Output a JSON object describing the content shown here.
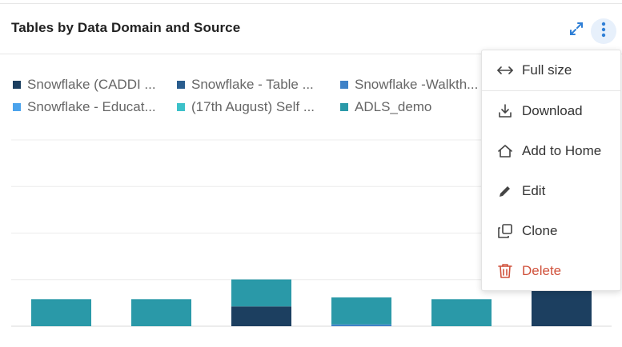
{
  "card": {
    "title": "Tables by Data Domain and Source"
  },
  "header_icons": {
    "expand": "expand-icon",
    "more": "more-vertical-icon"
  },
  "legend": [
    {
      "label": "Snowflake (CADDI ...",
      "color": "#1c3f60"
    },
    {
      "label": "Snowflake - Table ...",
      "color": "#2a5d8e"
    },
    {
      "label": "Snowflake -Walkth...",
      "color": "#3f82c7"
    },
    {
      "label": "Snowflake - Educat...",
      "color": "#4ba3ec"
    },
    {
      "label": "(17th August) Self ...",
      "color": "#3cc1c9"
    },
    {
      "label": "ADLS_demo",
      "color": "#2a99a8"
    }
  ],
  "chart_data": {
    "type": "bar",
    "stacked": true,
    "categories": [
      "",
      "",
      "",
      "",
      "",
      ""
    ],
    "series": [
      {
        "name": "Snowflake (CADDI ...",
        "values": [
          0,
          0,
          0.55,
          0,
          0,
          1.0
        ]
      },
      {
        "name": "Snowflake -Walkth...",
        "values": [
          0,
          0,
          0,
          0.05,
          0,
          0
        ]
      },
      {
        "name": "ADLS_demo",
        "values": [
          0.75,
          0.75,
          0.75,
          0.75,
          0.75,
          0
        ]
      }
    ],
    "grid": true,
    "legend_position": "top"
  },
  "menu": {
    "items": [
      {
        "label": "Full size",
        "icon": "arrows-horizontal-icon"
      },
      {
        "label": "Download",
        "icon": "download-icon"
      },
      {
        "label": "Add to Home",
        "icon": "home-icon"
      },
      {
        "label": "Edit",
        "icon": "pencil-icon"
      },
      {
        "label": "Clone",
        "icon": "clone-icon"
      },
      {
        "label": "Delete",
        "icon": "trash-icon"
      }
    ],
    "danger_color": "#d0513b"
  }
}
